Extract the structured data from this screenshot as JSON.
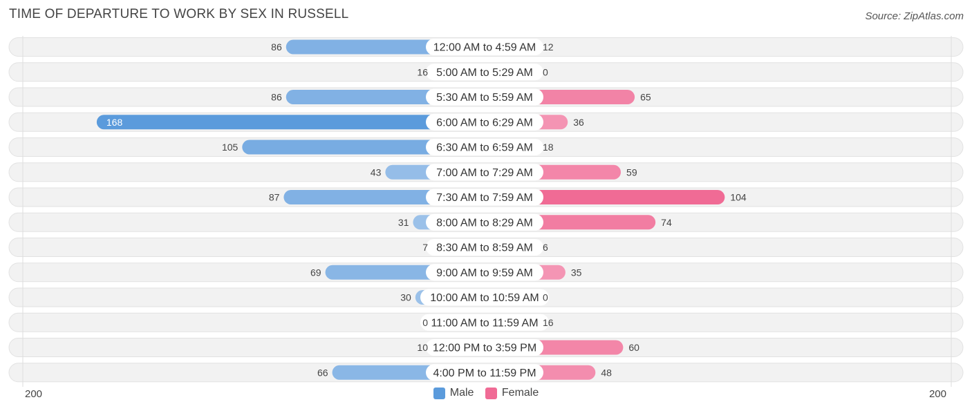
{
  "title": "TIME OF DEPARTURE TO WORK BY SEX IN RUSSELL",
  "source": "Source: ZipAtlas.com",
  "colors": {
    "male": "#5b9bdc",
    "male_light": "#a9c9ec",
    "female": "#f06b95",
    "female_light": "#f6aac3",
    "row_bg": "#f2f2f2"
  },
  "chart_data": {
    "type": "bar",
    "orientation": "horizontal-diverging",
    "categories": [
      "12:00 AM to 4:59 AM",
      "5:00 AM to 5:29 AM",
      "5:30 AM to 5:59 AM",
      "6:00 AM to 6:29 AM",
      "6:30 AM to 6:59 AM",
      "7:00 AM to 7:29 AM",
      "7:30 AM to 7:59 AM",
      "8:00 AM to 8:29 AM",
      "8:30 AM to 8:59 AM",
      "9:00 AM to 9:59 AM",
      "10:00 AM to 10:59 AM",
      "11:00 AM to 11:59 AM",
      "12:00 PM to 3:59 PM",
      "4:00 PM to 11:59 PM"
    ],
    "series": [
      {
        "name": "Male",
        "values": [
          86,
          16,
          86,
          168,
          105,
          43,
          87,
          31,
          7,
          69,
          30,
          0,
          10,
          66
        ]
      },
      {
        "name": "Female",
        "values": [
          12,
          0,
          65,
          36,
          18,
          59,
          104,
          74,
          6,
          35,
          0,
          16,
          60,
          48
        ]
      }
    ],
    "xlim": [
      -200,
      200
    ],
    "axis_labels": {
      "left": "200",
      "right": "200"
    },
    "legend": [
      "Male",
      "Female"
    ],
    "legend_position": "bottom-center"
  }
}
